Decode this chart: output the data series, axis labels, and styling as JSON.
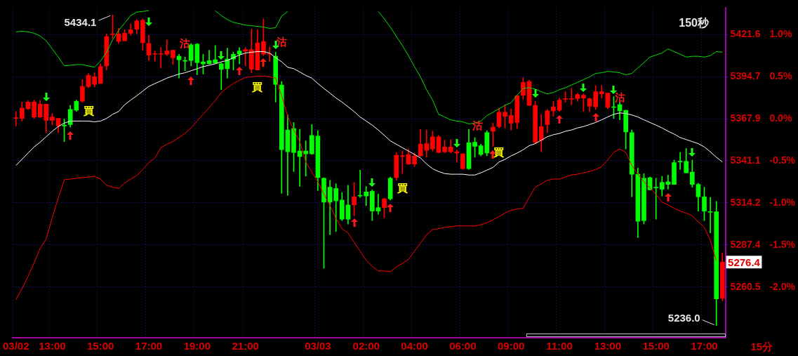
{
  "chart_data": {
    "type": "candlestick",
    "categories": [
      "03/02",
      null,
      null,
      null,
      null,
      null,
      "13:00",
      null,
      null,
      null,
      null,
      null,
      null,
      null,
      "15:00",
      null,
      null,
      null,
      null,
      null,
      null,
      null,
      "17:00",
      null,
      null,
      null,
      null,
      null,
      null,
      null,
      "19:00",
      null,
      null,
      null,
      null,
      null,
      null,
      null,
      "21:00",
      null,
      null,
      null,
      null,
      null,
      null,
      null,
      null,
      null,
      null,
      null,
      "03/03",
      null,
      null,
      null,
      null,
      null,
      null,
      null,
      "02:00",
      null,
      null,
      null,
      null,
      null,
      null,
      null,
      "04:00",
      null,
      null,
      null,
      null,
      null,
      null,
      null,
      "06:00",
      null,
      null,
      null,
      null,
      null,
      null,
      null,
      "09:00",
      null,
      null,
      null,
      null,
      null,
      null,
      null,
      "11:00",
      null,
      null,
      null,
      null,
      null,
      null,
      null,
      "13:00",
      null,
      null,
      null,
      null,
      null,
      null,
      null,
      "15:00",
      null,
      null,
      null,
      null,
      null,
      null,
      null,
      "17:00",
      null,
      null,
      null
    ],
    "ohlc": [
      [
        5368.1,
        5372.5,
        5363.3,
        5368.1
      ],
      [
        5368.1,
        5378.5,
        5366.4,
        5374.6
      ],
      [
        5374.2,
        5379.4,
        5373.8,
        5378.5
      ],
      [
        5369.0,
        5379.8,
        5368.1,
        5378.5
      ],
      [
        5369.0,
        5379.4,
        5368.6,
        5377.2
      ],
      [
        5366.8,
        5377.2,
        5359.0,
        5377.2
      ],
      [
        5366.8,
        5371.2,
        5363.8,
        5369.0
      ],
      [
        5363.3,
        5368.1,
        5359.0,
        5368.1
      ],
      [
        5363.8,
        5367.7,
        5353.3,
        5363.3
      ],
      [
        5373.8,
        5376.4,
        5362.5,
        5364.2
      ],
      [
        5379.0,
        5379.8,
        5372.5,
        5373.3
      ],
      [
        5379.0,
        5392.9,
        5378.5,
        5388.5
      ],
      [
        5388.5,
        5396.8,
        5387.7,
        5395.5
      ],
      [
        5389.8,
        5397.2,
        5388.1,
        5394.6
      ],
      [
        5390.3,
        5402.9,
        5390.3,
        5401.1
      ],
      [
        5401.6,
        5422.0,
        5399.0,
        5420.3
      ],
      [
        5421.6,
        5434.1,
        5419.0,
        5422.0
      ],
      [
        5417.2,
        5425.5,
        5415.9,
        5422.0
      ],
      [
        5417.6,
        5424.6,
        5417.6,
        5422.4
      ],
      [
        5422.4,
        5428.5,
        5421.1,
        5424.6
      ],
      [
        5425.0,
        5431.1,
        5422.0,
        5430.2
      ],
      [
        5416.3,
        5431.6,
        5411.6,
        5430.7
      ],
      [
        5408.5,
        5421.1,
        5405.0,
        5415.9
      ],
      [
        5409.0,
        5411.1,
        5404.6,
        5409.4
      ],
      [
        5409.0,
        5413.3,
        5400.3,
        5409.4
      ],
      [
        5409.0,
        5418.1,
        5408.1,
        5411.1
      ],
      [
        5406.8,
        5411.6,
        5402.4,
        5411.6
      ],
      [
        5407.7,
        5409.0,
        5393.8,
        5405.5
      ],
      [
        5405.0,
        5407.2,
        5398.5,
        5404.6
      ],
      [
        5415.0,
        5415.9,
        5401.6,
        5405.0
      ],
      [
        5415.5,
        5415.9,
        5395.9,
        5403.7
      ],
      [
        5404.2,
        5409.0,
        5396.4,
        5402.9
      ],
      [
        5405.0,
        5411.6,
        5402.9,
        5402.9
      ],
      [
        5405.5,
        5414.6,
        5403.3,
        5403.3
      ],
      [
        5402.9,
        5403.7,
        5386.4,
        5399.4
      ],
      [
        5405.9,
        5412.9,
        5393.8,
        5399.8
      ],
      [
        5409.0,
        5410.3,
        5399.0,
        5405.9
      ],
      [
        5411.1,
        5413.3,
        5402.9,
        5409.0
      ],
      [
        5411.1,
        5413.3,
        5401.6,
        5412.0
      ],
      [
        5399.4,
        5425.0,
        5397.2,
        5412.0
      ],
      [
        5399.0,
        5424.6,
        5399.0,
        5416.3
      ],
      [
        5409.0,
        5431.6,
        5408.1,
        5417.2
      ],
      [
        5409.0,
        5413.7,
        5404.6,
        5409.4
      ],
      [
        5407.7,
        5410.3,
        5378.5,
        5389.8
      ],
      [
        5389.4,
        5391.6,
        5320.3,
        5348.1
      ],
      [
        5360.7,
        5370.3,
        5319.0,
        5346.8
      ],
      [
        5361.6,
        5365.5,
        5334.2,
        5346.4
      ],
      [
        5347.3,
        5361.2,
        5324.7,
        5343.8
      ],
      [
        5347.3,
        5353.8,
        5331.2,
        5345.5
      ],
      [
        5357.3,
        5364.2,
        5345.1,
        5345.5
      ],
      [
        5356.8,
        5360.3,
        5322.1,
        5330.3
      ],
      [
        5329.9,
        5330.3,
        5272.5,
        5314.7
      ],
      [
        5324.2,
        5328.6,
        5293.8,
        5314.7
      ],
      [
        5323.4,
        5326.4,
        5296.0,
        5315.5
      ],
      [
        5316.0,
        5320.8,
        5302.9,
        5303.8
      ],
      [
        5312.9,
        5325.5,
        5300.8,
        5303.8
      ],
      [
        5312.9,
        5327.3,
        5306.0,
        5318.1
      ],
      [
        5319.0,
        5335.1,
        5317.7,
        5318.6
      ],
      [
        5321.2,
        5324.7,
        5312.5,
        5318.6
      ],
      [
        5321.6,
        5322.5,
        5302.9,
        5309.0
      ],
      [
        5311.2,
        5319.9,
        5306.9,
        5309.0
      ],
      [
        5311.2,
        5317.3,
        5304.7,
        5316.8
      ],
      [
        5329.9,
        5330.7,
        5316.0,
        5316.8
      ],
      [
        5330.3,
        5346.4,
        5328.6,
        5344.6
      ],
      [
        5343.8,
        5347.3,
        5332.9,
        5344.2
      ],
      [
        5339.0,
        5348.6,
        5338.6,
        5345.1
      ],
      [
        5339.0,
        5346.0,
        5337.3,
        5344.2
      ],
      [
        5344.2,
        5361.2,
        5343.8,
        5351.6
      ],
      [
        5347.7,
        5360.7,
        5343.3,
        5352.0
      ],
      [
        5348.6,
        5359.9,
        5347.3,
        5356.4
      ],
      [
        5346.4,
        5357.3,
        5346.0,
        5356.4
      ],
      [
        5346.8,
        5354.2,
        5346.0,
        5349.9
      ],
      [
        5346.8,
        5354.6,
        5346.0,
        5349.9
      ],
      [
        5346.0,
        5348.1,
        5340.3,
        5346.8
      ],
      [
        5336.0,
        5345.5,
        5335.5,
        5345.5
      ],
      [
        5352.5,
        5361.2,
        5335.5,
        5336.0
      ],
      [
        5352.9,
        5355.9,
        5343.3,
        5350.3
      ],
      [
        5350.7,
        5351.6,
        5344.2,
        5345.1
      ],
      [
        5359.0,
        5360.3,
        5344.2,
        5346.0
      ],
      [
        5359.9,
        5365.1,
        5350.3,
        5362.5
      ],
      [
        5362.9,
        5374.6,
        5362.0,
        5372.0
      ],
      [
        5369.4,
        5376.8,
        5362.0,
        5372.0
      ],
      [
        5365.1,
        5374.2,
        5360.7,
        5369.9
      ],
      [
        5365.5,
        5382.9,
        5361.6,
        5382.5
      ],
      [
        5382.9,
        5394.2,
        5380.3,
        5391.1
      ],
      [
        5376.4,
        5392.4,
        5376.4,
        5391.6
      ],
      [
        5352.9,
        5379.0,
        5352.0,
        5376.4
      ],
      [
        5354.2,
        5370.7,
        5346.8,
        5362.9
      ],
      [
        5364.2,
        5373.8,
        5359.0,
        5372.9
      ],
      [
        5372.9,
        5379.0,
        5369.4,
        5375.5
      ],
      [
        5373.3,
        5381.1,
        5372.5,
        5379.8
      ],
      [
        5380.3,
        5385.1,
        5378.5,
        5380.7
      ],
      [
        5380.3,
        5387.2,
        5376.8,
        5380.7
      ],
      [
        5380.7,
        5384.2,
        5379.0,
        5383.3
      ],
      [
        5381.1,
        5383.7,
        5372.5,
        5382.9
      ],
      [
        5375.9,
        5381.1,
        5372.5,
        5380.7
      ],
      [
        5375.5,
        5389.0,
        5373.8,
        5385.1
      ],
      [
        5383.7,
        5389.0,
        5381.1,
        5385.1
      ],
      [
        5375.1,
        5384.2,
        5374.2,
        5384.2
      ],
      [
        5375.5,
        5382.0,
        5368.1,
        5375.1
      ],
      [
        5376.8,
        5378.5,
        5367.2,
        5372.9
      ],
      [
        5373.3,
        5373.3,
        5348.6,
        5359.4
      ],
      [
        5359.0,
        5360.7,
        5318.1,
        5332.5
      ],
      [
        5332.5,
        5336.4,
        5292.1,
        5302.5
      ],
      [
        5329.9,
        5332.9,
        5300.8,
        5302.9
      ],
      [
        5330.3,
        5330.7,
        5322.5,
        5322.5
      ],
      [
        5324.2,
        5329.9,
        5303.8,
        5323.8
      ],
      [
        5327.3,
        5331.2,
        5318.6,
        5322.9
      ],
      [
        5327.7,
        5332.0,
        5322.9,
        5326.0
      ],
      [
        5339.9,
        5341.6,
        5326.0,
        5326.0
      ],
      [
        5340.7,
        5346.4,
        5335.5,
        5340.3
      ],
      [
        5340.7,
        5349.0,
        5333.4,
        5333.4
      ],
      [
        5333.8,
        5341.6,
        5324.2,
        5326.0
      ],
      [
        5326.0,
        5326.8,
        5309.0,
        5318.1
      ],
      [
        5318.1,
        5324.2,
        5302.9,
        5309.0
      ],
      [
        5308.6,
        5317.7,
        5295.1,
        5308.2
      ],
      [
        5308.6,
        5315.1,
        5236.0,
        5253.0
      ],
      [
        5253.4,
        5282.1,
        5251.7,
        5276.4
      ]
    ],
    "colors": [
      "#ff0000",
      "#ff0000",
      "#ff0000",
      "#ff0000",
      "#ff0000",
      "#ff0000",
      "#ff0000",
      "#ff0000",
      "#00ff00",
      "#00ff00",
      "#00ff00",
      "#ff0000",
      "#ff0000",
      "#ff0000",
      "#ff0000",
      "#ff0000",
      "#ff0000",
      "#ff0000",
      "#ff0000",
      "#ff0000",
      "#ff0000",
      "#ff0000",
      "#ff0000",
      "#ff0000",
      "#ff0000",
      "#ff0000",
      "#ff0000",
      "#00ff00",
      "#00ff00",
      "#00ff00",
      "#00ff00",
      "#00ff00",
      "#00ff00",
      "#00ff00",
      "#00ff00",
      "#00ff00",
      "#00ff00",
      "#00ff00",
      "#ff0000",
      "#ff0000",
      "#ff0000",
      "#ff0000",
      "#ff0000",
      "#00ff00",
      "#00ff00",
      "#00ff00",
      "#00ff00",
      "#00ff00",
      "#00ff00",
      "#00ff00",
      "#00ff00",
      "#00ff00",
      "#00ff00",
      "#00ff00",
      "#00ff00",
      "#00ff00",
      "#ff0000",
      "#00ff00",
      "#00ff00",
      "#00ff00",
      "#00ff00",
      "#ff0000",
      "#00ff00",
      "#ff0000",
      "#ff0000",
      "#ff0000",
      "#ff0000",
      "#ff0000",
      "#ff0000",
      "#ff0000",
      "#ff0000",
      "#ff0000",
      "#ff0000",
      "#ff0000",
      "#ff0000",
      "#00ff00",
      "#00ff00",
      "#00ff00",
      "#00ff00",
      "#ff0000",
      "#ff0000",
      "#ff0000",
      "#ff0000",
      "#ff0000",
      "#ff0000",
      "#ff0000",
      "#ff0000",
      "#ff0000",
      "#ff0000",
      "#ff0000",
      "#ff0000",
      "#ff0000",
      "#ff0000",
      "#ff0000",
      "#ff0000",
      "#ff0000",
      "#ff0000",
      "#ff0000",
      "#ff0000",
      "#00ff00",
      "#00ff00",
      "#00ff00",
      "#00ff00",
      "#00ff00",
      "#00ff00",
      "#00ff00",
      "#00ff00",
      "#00ff00",
      "#00ff00",
      "#00ff00",
      "#00ff00",
      "#00ff00",
      "#00ff00",
      "#00ff00",
      "#00ff00",
      "#00ff00",
      "#00ff00",
      "#ff0000"
    ],
    "series": [
      {
        "type": "line",
        "color": "#00e000",
        "values": [
          5423.3,
          5423.7,
          5423.3,
          5422.4,
          5420.7,
          5417.6,
          5412.4,
          5407.2,
          5401.6,
          5402.0,
          5402.4,
          5402.4,
          5401.6,
          5400.7,
          5404.6,
          5410.3,
          5418.1,
          5424.2,
          5428.9,
          5433.7,
          5435.9,
          5436.3,
          5436.8,
          null,
          null,
          null,
          null,
          null,
          null,
          null,
          null,
          null,
          null,
          5436.8,
          5433.7,
          5431.1,
          5429.4,
          5428.5,
          5427.6,
          5427.2,
          5426.8,
          5426.3,
          5425.5,
          5425.9,
          5433.3,
          5436.3,
          null,
          null,
          null,
          null,
          null,
          null,
          null,
          null,
          null,
          null,
          null,
          null,
          null,
          null,
          5436.3,
          5431.6,
          5426.3,
          5420.3,
          5414.6,
          5408.1,
          5401.1,
          5394.6,
          5386.4,
          5379.8,
          5370.7,
          5369.0,
          5367.2,
          5366.4,
          5365.9,
          5364.6,
          5365.1,
          5366.4,
          5369.9,
          5372.0,
          5374.2,
          5376.4,
          5378.1,
          5382.9,
          5387.2,
          5387.7,
          5386.8,
          5385.1,
          5383.7,
          5384.6,
          5386.4,
          5387.7,
          5389.4,
          5391.1,
          5392.9,
          5394.6,
          5396.8,
          5397.2,
          5398.1,
          5397.7,
          5397.2,
          5395.9,
          5396.8,
          5400.3,
          5403.7,
          5407.2,
          5408.5,
          5409.8,
          5412.4,
          5410.7,
          5409.0,
          5407.2,
          5407.7,
          5407.7,
          5407.2,
          5408.1,
          5410.7,
          5410.3
        ]
      },
      {
        "type": "line",
        "color": "#ffffff",
        "values": [
          5338.1,
          5342.0,
          5346.0,
          5349.9,
          5352.9,
          5356.4,
          5359.9,
          5362.9,
          5365.1,
          5366.4,
          5366.4,
          5366.4,
          5366.4,
          5365.9,
          5366.4,
          5368.1,
          5370.7,
          5372.5,
          5376.8,
          5379.8,
          5382.5,
          5385.5,
          5388.5,
          5390.3,
          5392.0,
          5393.8,
          5395.1,
          5396.4,
          5397.2,
          5398.5,
          5399.8,
          5401.1,
          5402.0,
          5402.9,
          5404.2,
          5405.0,
          5406.8,
          5408.5,
          5409.8,
          5410.3,
          5410.7,
          5410.7,
          5409.8,
          5406.8,
          5404.2,
          5400.7,
          5399.8,
          5397.7,
          5395.5,
          5393.8,
          5390.3,
          5387.2,
          5384.2,
          5381.1,
          5378.5,
          5375.5,
          5372.5,
          5369.0,
          5366.4,
          5363.8,
          5360.7,
          5357.3,
          5353.8,
          5351.6,
          5349.4,
          5347.3,
          5345.1,
          5342.9,
          5339.0,
          5336.0,
          5334.2,
          5332.9,
          5332.5,
          5332.5,
          5332.5,
          5332.0,
          5332.0,
          5333.4,
          5335.1,
          5336.8,
          5340.3,
          5342.0,
          5344.2,
          5346.0,
          5348.1,
          5350.7,
          5352.0,
          5354.2,
          5356.4,
          5357.7,
          5358.5,
          5359.9,
          5360.7,
          5362.0,
          5362.9,
          5364.2,
          5365.5,
          5367.2,
          5369.0,
          5370.7,
          5371.6,
          5371.2,
          5370.3,
          5369.0,
          5367.2,
          5365.5,
          5363.8,
          5362.0,
          5359.9,
          5358.1,
          5355.9,
          5354.6,
          5353.3,
          5352.0,
          5349.9,
          5346.8,
          5343.3,
          5340.3
        ]
      },
      {
        "type": "line",
        "color": "#ff0000",
        "values": [
          5252.5,
          5259.5,
          5267.3,
          5276.0,
          5285.1,
          5291.2,
          5304.7,
          5317.3,
          5329.0,
          5329.4,
          5329.9,
          5330.3,
          5330.7,
          5331.2,
          5329.4,
          5325.5,
          5324.2,
          5323.4,
          5326.8,
          5329.4,
          5331.6,
          5335.5,
          5339.9,
          5342.9,
          5349.4,
          5351.6,
          5353.3,
          5355.9,
          5358.5,
          5362.0,
          5366.4,
          5370.7,
          5375.1,
          5379.4,
          5384.6,
          5387.7,
          5390.3,
          5392.4,
          5394.2,
          5394.6,
          5395.1,
          5395.1,
          5394.6,
          5393.8,
          5382.5,
          5369.4,
          5360.7,
          5353.3,
          5340.3,
          5333.8,
          5327.7,
          5319.9,
          5312.5,
          5304.2,
          5297.7,
          5295.1,
          5289.0,
          5283.4,
          5277.7,
          5273.8,
          5270.8,
          5270.8,
          5270.3,
          5273.4,
          5275.6,
          5278.2,
          5283.4,
          5288.6,
          5293.8,
          5297.3,
          5297.7,
          5298.6,
          5299.0,
          5299.5,
          5299.5,
          5299.5,
          5299.5,
          5300.3,
          5301.6,
          5303.4,
          5305.5,
          5307.7,
          5309.5,
          5310.3,
          5310.8,
          5317.7,
          5324.2,
          5326.4,
          5328.6,
          5329.4,
          5329.4,
          5330.7,
          5332.0,
          5332.5,
          5333.4,
          5334.2,
          5335.5,
          5337.3,
          5341.6,
          5346.4,
          5348.6,
          5346.4,
          5338.1,
          5332.5,
          5327.7,
          5323.8,
          5319.5,
          5314.7,
          5312.9,
          5310.8,
          5309.0,
          5307.7,
          5306.0,
          5302.1,
          5298.6,
          5290.3,
          5277.3,
          null
        ]
      }
    ],
    "ylim": [
      5228.2,
      5438.5
    ],
    "yticks": [
      5421.6,
      5394.7,
      5367.9,
      5341.1,
      5314.2,
      5287.4,
      5260.5
    ],
    "y2lim": [
      -2.603,
      1.315
    ],
    "y2ticks": [
      {
        "value": 1.0,
        "label": "1.0%"
      },
      {
        "value": 0.5,
        "label": "0.5%"
      },
      {
        "value": 0.0,
        "label": "0.0%"
      },
      {
        "value": -0.5,
        "label": "-0.5%"
      },
      {
        "value": -1.0,
        "label": "-1.0%"
      },
      {
        "value": -1.5,
        "label": "-1.5%"
      },
      {
        "value": -2.0,
        "label": "-2.0%"
      }
    ],
    "grid": true,
    "annotations": [
      "5434.1",
      "5236.0",
      "5276.4",
      "150秒",
      "15分",
      "買",
      "沽",
      "買",
      "沽",
      "買",
      "沽",
      "買",
      "沽"
    ]
  }
}
